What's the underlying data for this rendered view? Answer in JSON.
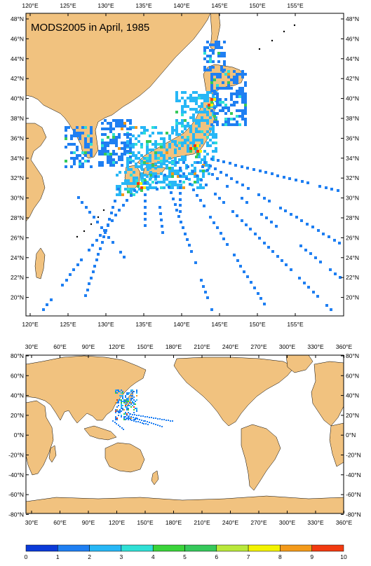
{
  "colors": {
    "land": "#f1c27f",
    "ocean": "#ffffff",
    "frame": "#000000",
    "scale": [
      "#0b3ad8",
      "#1f7ff2",
      "#27b7f6",
      "#2fe0d6",
      "#3ad43a",
      "#36c95b",
      "#b9e83a",
      "#f3f300",
      "#f39a1a",
      "#f23a10"
    ]
  },
  "top_map": {
    "title": "MODS2005 in April, 1985",
    "x_ticks": [
      "120°E",
      "125°E",
      "130°E",
      "135°E",
      "140°E",
      "145°E",
      "150°E",
      "155°E"
    ],
    "y_ticks": [
      "48°N",
      "46°N",
      "44°N",
      "42°N",
      "40°N",
      "38°N",
      "36°N",
      "34°N",
      "32°N",
      "30°N",
      "28°N",
      "26°N",
      "24°N",
      "22°N",
      "20°N"
    ]
  },
  "bottom_map": {
    "x_ticks": [
      "30°E",
      "60°E",
      "90°E",
      "120°E",
      "150°E",
      "180°E",
      "210°E",
      "240°E",
      "270°E",
      "300°E",
      "330°E",
      "360°E"
    ],
    "y_ticks": [
      "80°N",
      "60°N",
      "40°N",
      "20°N",
      "0°N",
      "-20°N",
      "-40°N",
      "-60°N",
      "-80°N"
    ]
  },
  "colorbar": {
    "labels": [
      "0",
      "1",
      "2",
      "3",
      "4",
      "5",
      "6",
      "7",
      "8",
      "9",
      "10"
    ]
  }
}
